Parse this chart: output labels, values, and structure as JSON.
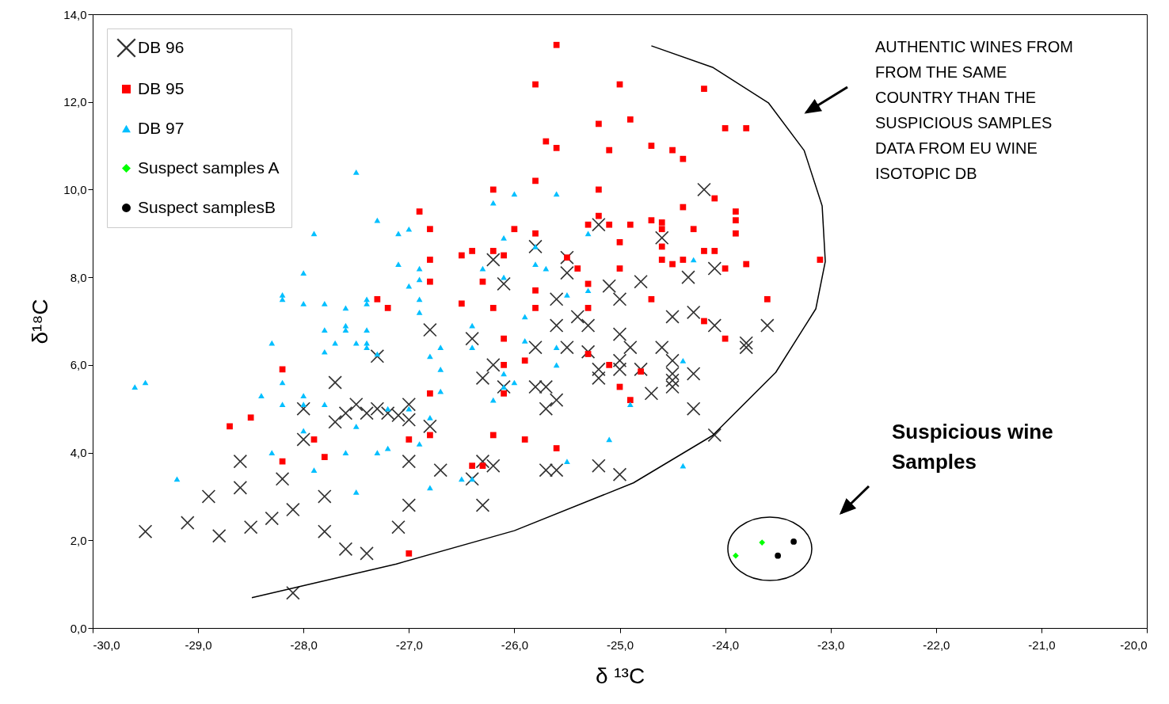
{
  "chart_data": {
    "type": "scatter",
    "xlabel": "δ ¹³C",
    "ylabel": "δ¹⁸C",
    "legend": "top left",
    "grid": false,
    "xlim": [
      -30,
      -20
    ],
    "ylim": [
      0,
      14
    ],
    "xticks": [
      {
        "value": -30,
        "label": "-30,0"
      },
      {
        "value": -29,
        "label": "-29,0"
      },
      {
        "value": -28,
        "label": "-28,0"
      },
      {
        "value": -27,
        "label": "-27,0"
      },
      {
        "value": -26,
        "label": "-26,0"
      },
      {
        "value": -25,
        "label": "-25,0"
      },
      {
        "value": -24,
        "label": "-24,0"
      },
      {
        "value": -23,
        "label": "-23,0"
      },
      {
        "value": -22,
        "label": "-22,0"
      },
      {
        "value": -21,
        "label": "-21,0"
      },
      {
        "value": -20,
        "label": "-20,0"
      }
    ],
    "yticks": [
      {
        "value": 0,
        "label": "0,0"
      },
      {
        "value": 2,
        "label": "2,0"
      },
      {
        "value": 4,
        "label": "4,0"
      },
      {
        "value": 6,
        "label": "6,0"
      },
      {
        "value": 8,
        "label": "8,0"
      },
      {
        "value": 10,
        "label": "10,0"
      },
      {
        "value": 12,
        "label": "12,0"
      },
      {
        "value": 14,
        "label": "14,0"
      }
    ],
    "annotations": [
      "AUTHENTIC WINES FROM\nFROM THE SAME\nCOUNTRY THAN THE\nSUSPICIOUS SAMPLES\nDATA FROM EU WINE\nISOTOPIC DB",
      "Suspicious wine\nSamples"
    ],
    "series": [
      {
        "name": "DB 96",
        "color": "#333333",
        "marker": "cross",
        "x": [
          -29.5,
          -29.1,
          -28.9,
          -28.8,
          -28.6,
          -28.6,
          -28.5,
          -28.3,
          -28.2,
          -28.1,
          -28.1,
          -28.0,
          -28.0,
          -27.8,
          -27.8,
          -27.7,
          -27.7,
          -27.6,
          -27.6,
          -27.5,
          -27.4,
          -27.4,
          -27.3,
          -27.3,
          -27.2,
          -27.1,
          -27.1,
          -27.0,
          -27.0,
          -27.0,
          -27.0,
          -26.8,
          -26.8,
          -26.7,
          -26.4,
          -26.4,
          -26.3,
          -26.3,
          -26.3,
          -26.2,
          -26.2,
          -26.2,
          -26.1,
          -26.1,
          -25.8,
          -25.8,
          -25.8,
          -25.7,
          -25.7,
          -25.7,
          -25.6,
          -25.6,
          -25.6,
          -25.6,
          -25.5,
          -25.5,
          -25.5,
          -25.4,
          -25.3,
          -25.3,
          -25.2,
          -25.2,
          -25.2,
          -25.2,
          -25.1,
          -25.0,
          -25.0,
          -25.0,
          -25.0,
          -25.0,
          -24.9,
          -24.8,
          -24.8,
          -24.7,
          -24.6,
          -24.6,
          -24.5,
          -24.5,
          -24.5,
          -24.5,
          -24.5,
          -24.35,
          -24.3,
          -24.3,
          -24.3,
          -24.2,
          -24.1,
          -24.1,
          -24.1,
          -23.8,
          -23.8,
          -23.6
        ],
        "values": [
          2.2,
          2.4,
          3.0,
          2.1,
          3.8,
          3.2,
          2.3,
          2.5,
          3.4,
          2.7,
          0.8,
          5.0,
          4.3,
          3.0,
          2.2,
          5.6,
          4.7,
          1.8,
          4.9,
          5.1,
          1.7,
          4.9,
          6.2,
          5.0,
          4.9,
          2.3,
          4.85,
          5.1,
          4.75,
          3.8,
          2.8,
          6.8,
          4.6,
          3.6,
          6.6,
          3.4,
          5.7,
          3.8,
          2.8,
          8.4,
          6.0,
          3.7,
          7.85,
          5.5,
          8.7,
          6.4,
          5.5,
          5.0,
          5.5,
          3.6,
          3.6,
          7.5,
          6.9,
          5.2,
          8.45,
          8.1,
          6.4,
          7.1,
          6.9,
          6.3,
          5.9,
          5.7,
          3.7,
          9.2,
          7.8,
          7.5,
          6.7,
          6.1,
          5.9,
          3.5,
          6.4,
          7.9,
          5.9,
          5.35,
          6.4,
          8.9,
          7.1,
          6.1,
          5.8,
          5.65,
          5.5,
          8.0,
          7.2,
          5.8,
          5.0,
          10.0,
          6.9,
          8.2,
          4.4,
          6.5,
          6.4,
          6.9
        ]
      },
      {
        "name": "DB 95",
        "color": "#ff0000",
        "marker": "square",
        "x": [
          -28.7,
          -28.5,
          -28.2,
          -28.2,
          -27.9,
          -27.8,
          -27.3,
          -27.2,
          -27.0,
          -27.0,
          -26.9,
          -26.8,
          -26.8,
          -26.8,
          -26.8,
          -26.8,
          -26.5,
          -26.5,
          -26.4,
          -26.4,
          -26.3,
          -26.3,
          -26.2,
          -26.2,
          -26.2,
          -26.2,
          -26.1,
          -26.1,
          -26.1,
          -26.1,
          -26.0,
          -25.9,
          -25.9,
          -25.8,
          -25.8,
          -25.8,
          -25.8,
          -25.8,
          -25.7,
          -25.6,
          -25.6,
          -25.6,
          -25.5,
          -25.4,
          -25.3,
          -25.3,
          -25.3,
          -25.3,
          -25.2,
          -25.2,
          -25.2,
          -25.1,
          -25.1,
          -25.1,
          -25.0,
          -25.0,
          -25.0,
          -25.0,
          -24.9,
          -24.9,
          -24.9,
          -24.8,
          -24.7,
          -24.7,
          -24.7,
          -24.6,
          -24.6,
          -24.6,
          -24.6,
          -24.5,
          -24.5,
          -24.4,
          -24.4,
          -24.4,
          -24.3,
          -24.2,
          -24.2,
          -24.2,
          -24.1,
          -24.1,
          -24.0,
          -24.0,
          -24.0,
          -23.9,
          -23.9,
          -23.9,
          -23.8,
          -23.8,
          -23.6,
          -23.1
        ],
        "values": [
          4.6,
          4.8,
          5.9,
          3.8,
          4.3,
          3.9,
          7.5,
          7.3,
          4.3,
          1.7,
          9.5,
          9.1,
          8.4,
          7.9,
          5.35,
          4.4,
          8.5,
          7.4,
          8.6,
          3.7,
          3.7,
          7.9,
          10.0,
          8.6,
          7.3,
          4.4,
          8.5,
          6.6,
          6.0,
          5.35,
          9.1,
          6.1,
          4.3,
          12.4,
          10.2,
          9.0,
          7.7,
          7.3,
          11.1,
          10.95,
          13.3,
          4.1,
          8.45,
          8.2,
          9.2,
          7.85,
          7.3,
          6.25,
          11.5,
          10.0,
          9.4,
          10.9,
          9.2,
          6.0,
          12.4,
          8.8,
          8.2,
          5.5,
          11.6,
          9.2,
          5.2,
          5.85,
          11.0,
          9.3,
          7.5,
          9.25,
          9.1,
          8.7,
          8.4,
          10.9,
          8.3,
          10.7,
          9.6,
          8.4,
          9.1,
          12.3,
          8.6,
          7.0,
          9.8,
          8.6,
          11.4,
          8.2,
          6.6,
          9.5,
          9.3,
          9.0,
          11.4,
          8.3,
          7.5,
          8.4
        ]
      },
      {
        "name": "DB 97",
        "color": "#00bfff",
        "marker": "triangle",
        "x": [
          -29.6,
          -29.5,
          -29.2,
          -28.4,
          -28.3,
          -28.3,
          -28.2,
          -28.2,
          -28.2,
          -28.2,
          -28.0,
          -28.0,
          -28.0,
          -28.0,
          -28.0,
          -27.9,
          -27.9,
          -27.8,
          -27.8,
          -27.8,
          -27.8,
          -27.7,
          -27.6,
          -27.6,
          -27.6,
          -27.6,
          -27.5,
          -27.5,
          -27.5,
          -27.5,
          -27.4,
          -27.4,
          -27.4,
          -27.4,
          -27.4,
          -27.3,
          -27.3,
          -27.3,
          -27.2,
          -27.2,
          -27.1,
          -27.1,
          -27.0,
          -27.0,
          -27.0,
          -26.9,
          -26.9,
          -26.9,
          -26.9,
          -26.9,
          -26.8,
          -26.8,
          -26.8,
          -26.7,
          -26.7,
          -26.7,
          -26.5,
          -26.4,
          -26.4,
          -26.4,
          -26.3,
          -26.2,
          -26.2,
          -26.1,
          -26.1,
          -26.1,
          -26.1,
          -26.0,
          -26.0,
          -25.9,
          -25.9,
          -25.8,
          -25.8,
          -25.7,
          -25.6,
          -25.6,
          -25.6,
          -25.5,
          -25.5,
          -25.3,
          -25.3,
          -25.1,
          -24.9,
          -24.4,
          -24.4,
          -24.3
        ],
        "values": [
          5.5,
          5.6,
          3.4,
          5.3,
          6.5,
          4.0,
          7.6,
          7.5,
          5.6,
          5.1,
          8.1,
          7.4,
          5.3,
          4.5,
          5.1,
          9.0,
          3.6,
          7.4,
          6.8,
          6.3,
          5.1,
          6.5,
          7.3,
          6.9,
          6.8,
          4.0,
          6.5,
          4.6,
          3.1,
          10.4,
          7.5,
          7.4,
          6.8,
          6.5,
          6.4,
          9.3,
          6.25,
          4.0,
          4.1,
          5.0,
          9.0,
          8.3,
          9.1,
          7.8,
          5.0,
          8.2,
          7.95,
          7.5,
          7.2,
          4.2,
          6.2,
          4.8,
          3.2,
          6.4,
          5.9,
          5.4,
          3.4,
          6.9,
          6.4,
          3.4,
          8.2,
          9.7,
          5.2,
          8.9,
          8.0,
          5.8,
          5.5,
          9.9,
          5.6,
          6.55,
          7.1,
          8.3,
          8.7,
          8.2,
          9.9,
          6.4,
          6.0,
          3.8,
          7.6,
          9.0,
          7.7,
          4.3,
          5.1,
          6.1,
          3.7,
          8.4
        ]
      },
      {
        "name": "Suspect samples A",
        "color": "#00ff00",
        "marker": "diamond",
        "x": [
          -23.9,
          -23.65
        ],
        "values": [
          1.65,
          1.95
        ]
      },
      {
        "name": "Suspect samplesB",
        "color": "#000000",
        "marker": "circle",
        "x": [
          -23.5,
          -23.35
        ],
        "values": [
          1.65,
          1.97
        ]
      },
      {
        "type": "line",
        "color": "#000000",
        "marker": "none",
        "x": [
          -28.49,
          -27.12,
          -26.0,
          -24.87,
          -24.12,
          -23.52,
          -23.14,
          -23.05,
          -23.08,
          -23.25,
          -23.59,
          -24.12,
          -24.7
        ],
        "values": [
          0.69,
          1.46,
          2.22,
          3.31,
          4.39,
          5.83,
          7.28,
          8.36,
          9.63,
          10.89,
          11.98,
          12.79,
          13.28
        ]
      }
    ]
  }
}
